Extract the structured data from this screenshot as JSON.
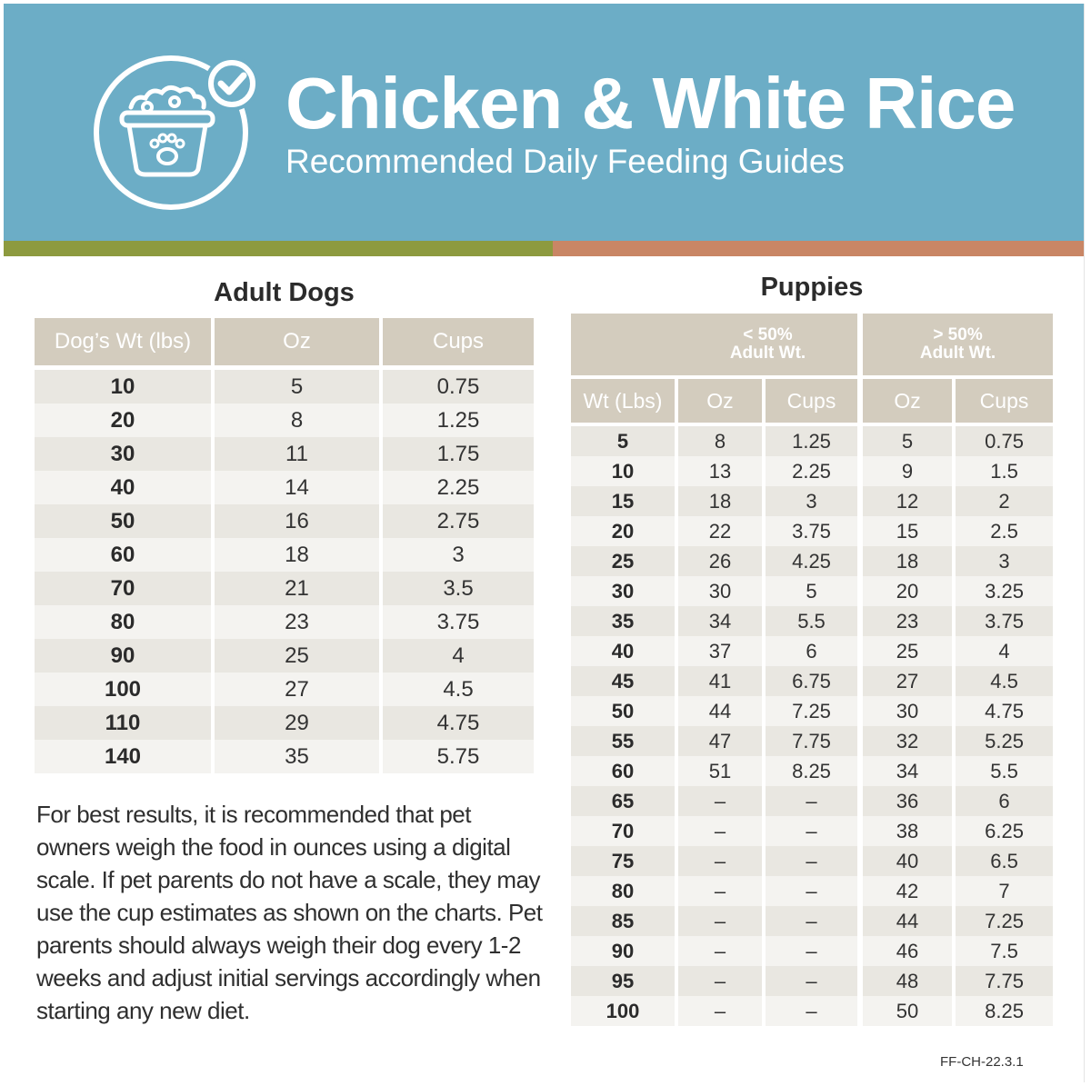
{
  "header": {
    "title": "Chicken & White Rice",
    "subtitle": "Recommended Daily Feeding Guides",
    "colors": {
      "banner": "#6cadc6",
      "stripe_left": "#8d9a3f",
      "stripe_right": "#c98665",
      "table_header": "#d3ccbe"
    },
    "icon": "dog-food-bowl-checkmark-icon"
  },
  "adult": {
    "title": "Adult Dogs",
    "columns": [
      "Dog’s Wt (lbs)",
      "Oz",
      "Cups"
    ],
    "rows": [
      [
        "10",
        "5",
        "0.75"
      ],
      [
        "20",
        "8",
        "1.25"
      ],
      [
        "30",
        "11",
        "1.75"
      ],
      [
        "40",
        "14",
        "2.25"
      ],
      [
        "50",
        "16",
        "2.75"
      ],
      [
        "60",
        "18",
        "3"
      ],
      [
        "70",
        "21",
        "3.5"
      ],
      [
        "80",
        "23",
        "3.75"
      ],
      [
        "90",
        "25",
        "4"
      ],
      [
        "100",
        "27",
        "4.5"
      ],
      [
        "110",
        "29",
        "4.75"
      ],
      [
        "140",
        "35",
        "5.75"
      ]
    ]
  },
  "puppies": {
    "title": "Puppies",
    "group_a": {
      "line1": "< 50%",
      "line2": "Adult Wt."
    },
    "group_b": {
      "line1": "> 50%",
      "line2": "Adult Wt."
    },
    "columns": [
      "Wt (Lbs)",
      "Oz",
      "Cups",
      "Oz",
      "Cups"
    ],
    "rows": [
      [
        "5",
        "8",
        "1.25",
        "5",
        "0.75"
      ],
      [
        "10",
        "13",
        "2.25",
        "9",
        "1.5"
      ],
      [
        "15",
        "18",
        "3",
        "12",
        "2"
      ],
      [
        "20",
        "22",
        "3.75",
        "15",
        "2.5"
      ],
      [
        "25",
        "26",
        "4.25",
        "18",
        "3"
      ],
      [
        "30",
        "30",
        "5",
        "20",
        "3.25"
      ],
      [
        "35",
        "34",
        "5.5",
        "23",
        "3.75"
      ],
      [
        "40",
        "37",
        "6",
        "25",
        "4"
      ],
      [
        "45",
        "41",
        "6.75",
        "27",
        "4.5"
      ],
      [
        "50",
        "44",
        "7.25",
        "30",
        "4.75"
      ],
      [
        "55",
        "47",
        "7.75",
        "32",
        "5.25"
      ],
      [
        "60",
        "51",
        "8.25",
        "34",
        "5.5"
      ],
      [
        "65",
        "–",
        "–",
        "36",
        "6"
      ],
      [
        "70",
        "–",
        "–",
        "38",
        "6.25"
      ],
      [
        "75",
        "–",
        "–",
        "40",
        "6.5"
      ],
      [
        "80",
        "–",
        "–",
        "42",
        "7"
      ],
      [
        "85",
        "–",
        "–",
        "44",
        "7.25"
      ],
      [
        "90",
        "–",
        "–",
        "46",
        "7.5"
      ],
      [
        "95",
        "–",
        "–",
        "48",
        "7.75"
      ],
      [
        "100",
        "–",
        "–",
        "50",
        "8.25"
      ]
    ]
  },
  "note": "For best results, it is recommended that pet owners weigh the food in ounces using a digital scale. If pet parents do not have a scale, they may use the cup estimates as shown on the charts. Pet parents should always weigh their dog every 1-2 weeks and adjust initial servings accordingly when starting any new diet.",
  "code": "FF-CH-22.3.1"
}
